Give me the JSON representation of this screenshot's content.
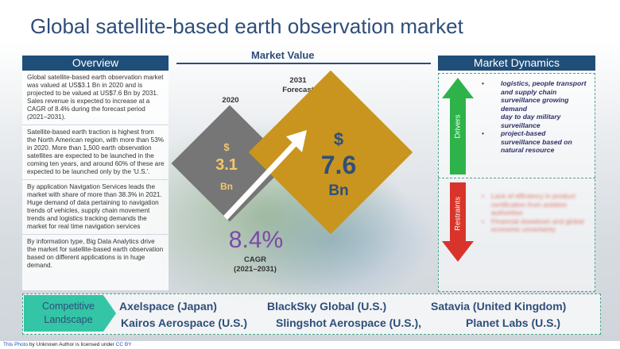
{
  "title": "Global satellite-based earth observation market",
  "overview": {
    "heading": "Overview",
    "paragraphs": [
      "Global satellite-based earth observation market was valued at US$3.1 Bn in 2020 and is projected to be valued at US$7.6 Bn by 2031. Sales revenue is expected to increase at a CAGR of 8.4% during the forecast period (2021–2031).",
      "Satellite-based earth traction is highest from the North American region, with more than 53% in 2020. More than 1,500 earth observation satellites are expected to be launched in the coming ten years, and around 60% of these are expected to be launched only by the 'U.S.'.",
      "By application Navigation Services leads the market with share of more than 38.3% in 2021. Huge demand of data pertaining to navigation trends of vehicles, supply chain movement trends and logistics tracking demands the market for real time navigation services",
      "By information type, Big Data Analytics drive the market for satellite-based earth observation based on different applications is in huge demand."
    ]
  },
  "market_value": {
    "heading": "Market Value",
    "year_2020": "2020",
    "year_2031": "2031",
    "forecast_label": "Forecast",
    "value_2020": {
      "currency": "$",
      "amount": "3.1",
      "unit": "Bn"
    },
    "value_2031": {
      "currency": "$",
      "amount": "7.6",
      "unit": "Bn"
    },
    "cagr_value": "8.4%",
    "cagr_label": "CAGR",
    "cagr_period": "(2021–2031)"
  },
  "market_dynamics": {
    "heading": "Market Dynamics",
    "drivers_label": "Drivers",
    "restraints_label": "Restraints",
    "drivers": [
      "logistics, people transport and supply chain surveillance growing demand",
      "day to day military surveillance",
      "project-based surveillance based on natural resource"
    ],
    "restraints": [
      "Lack of efficiency in product certification from aviation authorities",
      "Financial slowdown and global economic uncertainty"
    ],
    "colors": {
      "drivers": "#2db34a",
      "restraints": "#d9342b"
    }
  },
  "competitive": {
    "label_line1": "Competitive",
    "label_line2": "Landscape",
    "companies": [
      "Axelspace (Japan)",
      "BlackSky Global (U.S.)",
      "Satavia (United Kingdom)",
      "Kairos Aerospace (U.S.)",
      "Slingshot Aerospace (U.S.),",
      "Planet Labs (U.S.)"
    ]
  },
  "footer": {
    "photo_link": "This Photo",
    "middle": " by Unknown Author is licensed under ",
    "license": "CC BY"
  },
  "colors": {
    "title": "#2f4e7a",
    "header_bar": "#1f4e79",
    "gray_diamond": "#767676",
    "gold_diamond": "#c9951e",
    "cagr": "#7a4aa8",
    "dashed_border": "#4aa58c"
  }
}
